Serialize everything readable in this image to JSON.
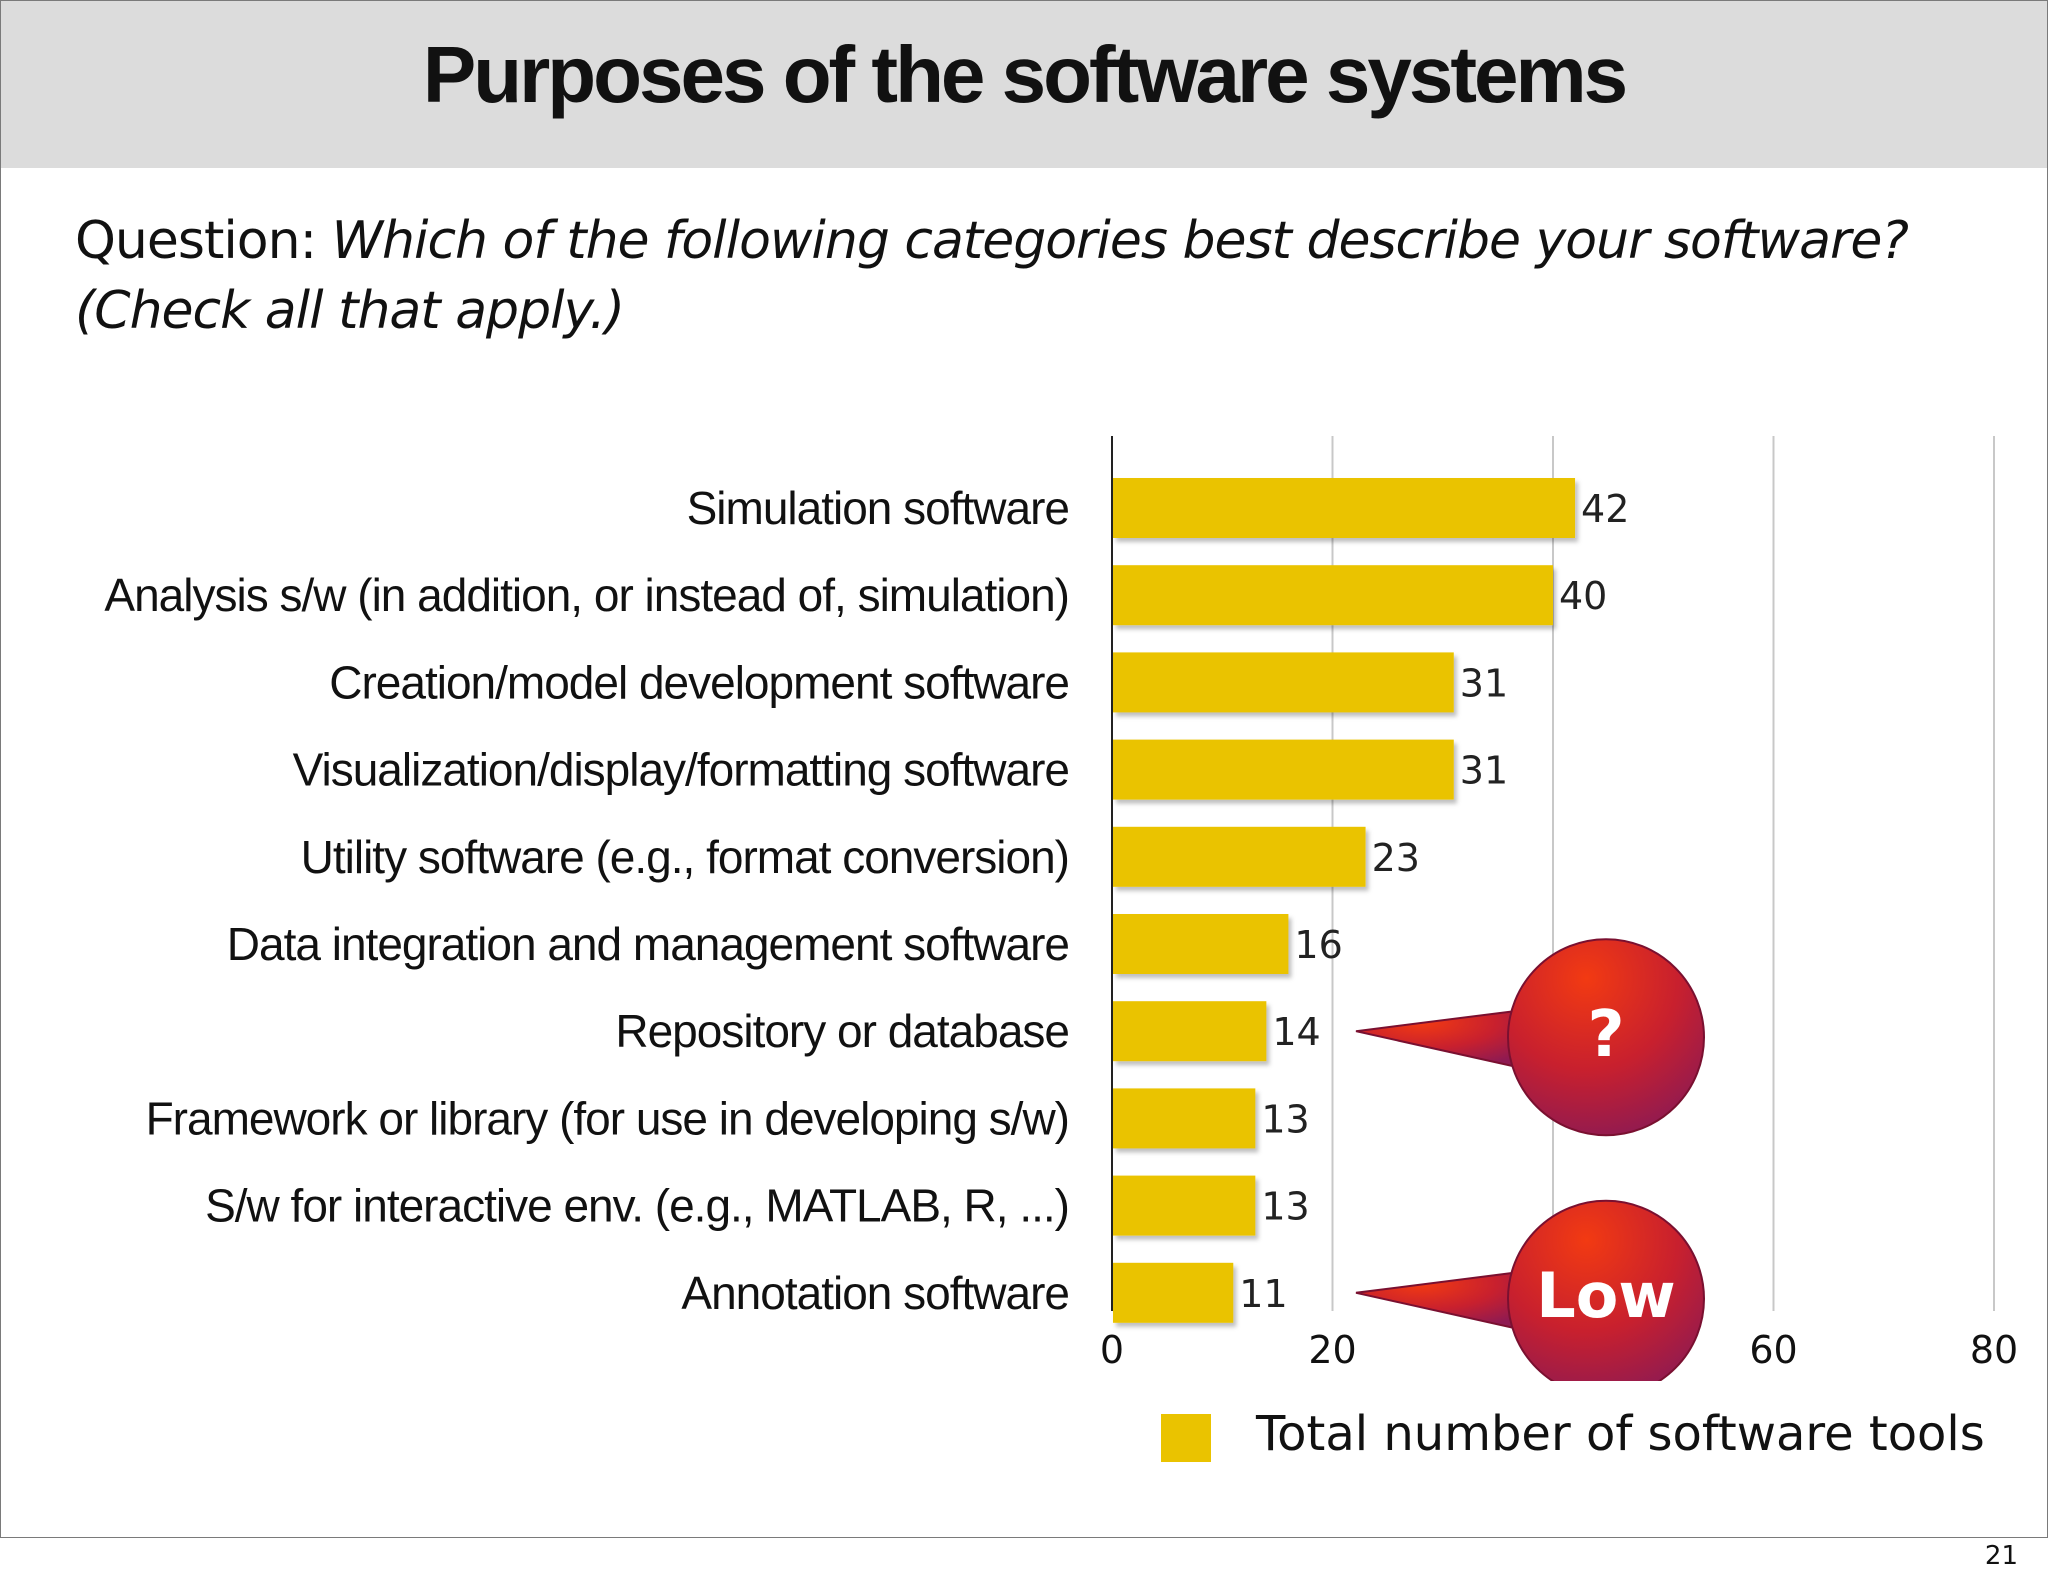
{
  "slide": {
    "title": "Purposes of the software systems",
    "question_prefix": "Question: ",
    "question_text": "Which of the following categories best describe your software? (Check all that apply.)",
    "page_number": "21"
  },
  "callouts": [
    {
      "label": "?",
      "points_to": "Repository or database"
    },
    {
      "label": "Low",
      "points_to": "Annotation software"
    }
  ],
  "colors": {
    "bar": "#eac300",
    "grid": "#c8c8c8",
    "callout_top": "#ea2a10",
    "callout_bottom": "#8e1a52"
  },
  "chart_data": {
    "type": "bar",
    "orientation": "horizontal",
    "categories": [
      "Simulation software",
      "Analysis s/w (in addition, or instead of, simulation)",
      "Creation/model development software",
      "Visualization/display/formatting software",
      "Utility software (e.g., format conversion)",
      "Data integration and management software",
      "Repository or database",
      "Framework or library (for use in developing s/w)",
      "S/w for interactive env. (e.g., MATLAB, R, ...)",
      "Annotation software"
    ],
    "series": [
      {
        "name": "Total number of software tools",
        "values": [
          42,
          40,
          31,
          31,
          23,
          16,
          14,
          13,
          13,
          11
        ]
      }
    ],
    "xlim": [
      0,
      80
    ],
    "xticks": [
      0,
      20,
      40,
      60,
      80
    ],
    "grid": true,
    "legend": "bottom",
    "data_labels": true
  }
}
